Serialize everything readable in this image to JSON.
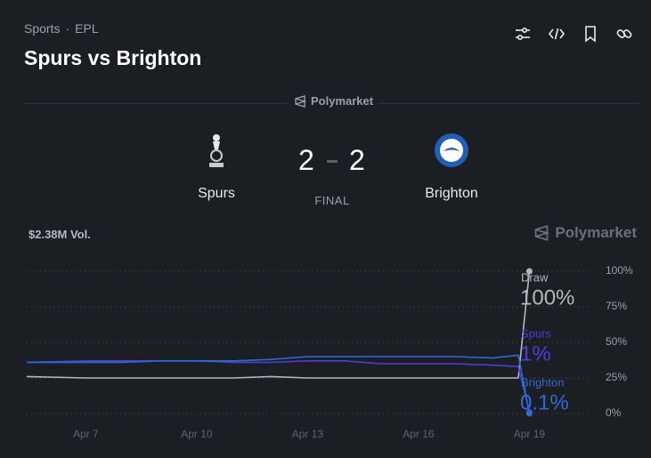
{
  "header": {
    "breadcrumb": [
      "Sports",
      "EPL"
    ],
    "title": "Spurs vs Brighton"
  },
  "source": "Polymarket",
  "match": {
    "home": {
      "name": "Spurs",
      "score": 2
    },
    "away": {
      "name": "Brighton",
      "score": 2
    },
    "status": "FINAL"
  },
  "volume": "$2.38M Vol.",
  "chart_data": {
    "type": "line",
    "x": [
      5.4,
      7,
      8,
      9,
      10,
      11,
      12,
      13,
      14,
      15,
      16,
      17,
      18,
      18.7,
      19
    ],
    "xlim": [
      5.4,
      20.7
    ],
    "xticks": [
      {
        "value": 7,
        "label": "Apr 7"
      },
      {
        "value": 10,
        "label": "Apr 10"
      },
      {
        "value": 13,
        "label": "Apr 13"
      },
      {
        "value": 16,
        "label": "Apr 16"
      },
      {
        "value": 19,
        "label": "Apr 19"
      }
    ],
    "ylim": [
      0,
      100
    ],
    "yticks": [
      {
        "value": 100,
        "label": "100%"
      },
      {
        "value": 75,
        "label": "75%"
      },
      {
        "value": 50,
        "label": "50%"
      },
      {
        "value": 25,
        "label": "25%"
      },
      {
        "value": 0,
        "label": "0%"
      }
    ],
    "grid": true,
    "series": [
      {
        "name": "Draw",
        "color": "#b4b8bd",
        "values": [
          26,
          25,
          25,
          25,
          25,
          25,
          26,
          25,
          25,
          25,
          25,
          25,
          25,
          25,
          100
        ],
        "value_labels": [
          null,
          null,
          null,
          null,
          null,
          null,
          null,
          null,
          null,
          null,
          null,
          null,
          null,
          null,
          "100%"
        ]
      },
      {
        "name": "Spurs",
        "color": "#4b3fd6",
        "values": [
          36,
          37,
          37,
          37,
          37,
          36,
          36,
          37,
          37,
          35,
          35,
          35,
          34,
          33,
          1
        ],
        "value_labels": [
          null,
          null,
          null,
          null,
          null,
          null,
          null,
          null,
          null,
          null,
          null,
          null,
          null,
          null,
          "1%"
        ]
      },
      {
        "name": "Brighton",
        "color": "#2f6ad6",
        "values": [
          36,
          36,
          36,
          37,
          37,
          37,
          38,
          40,
          40,
          40,
          40,
          40,
          39,
          41,
          0.1
        ],
        "value_labels": [
          null,
          null,
          null,
          null,
          null,
          null,
          null,
          null,
          null,
          null,
          null,
          null,
          null,
          null,
          "0.1%"
        ]
      }
    ]
  }
}
